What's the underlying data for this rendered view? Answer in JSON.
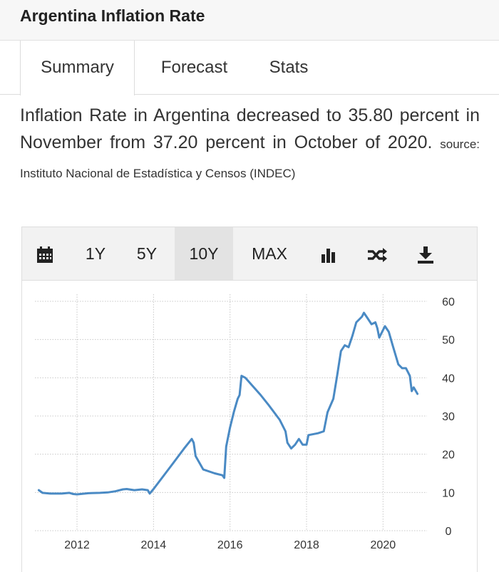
{
  "header": {
    "title": "Argentina Inflation Rate"
  },
  "tabs": [
    {
      "label": "Summary",
      "active": true
    },
    {
      "label": "Forecast",
      "active": false
    },
    {
      "label": "Stats",
      "active": false
    }
  ],
  "description": {
    "text": "Inflation Rate in Argentina decreased to 35.80 percent in November from 37.20 percent in October of 2020.",
    "source": "source: Instituto Nacional de Estadística y Censos (INDEC)"
  },
  "toolbar": {
    "calendar_icon": "calendar-icon",
    "ranges": [
      "1Y",
      "5Y",
      "10Y",
      "MAX"
    ],
    "active_range": "10Y",
    "chart_type_icon": "bar-chart-icon",
    "compare_icon": "shuffle-icon",
    "download_icon": "download-icon"
  },
  "colors": {
    "line": "#4a8ac4",
    "grid": "#c8c8c8",
    "header_bg": "#f7f7f7",
    "toolbar_bg": "#f2f2f2"
  },
  "chart_data": {
    "type": "line",
    "title": "",
    "xlabel": "",
    "ylabel": "",
    "ylim": [
      0,
      60
    ],
    "xlim": [
      2010.9,
      2021.0
    ],
    "x_ticks": [
      "2012",
      "2014",
      "2016",
      "2018",
      "2020"
    ],
    "y_ticks": [
      "0",
      "10",
      "20",
      "30",
      "40",
      "50",
      "60"
    ],
    "grid": true,
    "series": [
      {
        "name": "",
        "points": [
          [
            2011.0,
            10.6
          ],
          [
            2011.1,
            9.9
          ],
          [
            2011.3,
            9.7
          ],
          [
            2011.6,
            9.7
          ],
          [
            2011.8,
            9.9
          ],
          [
            2011.9,
            9.6
          ],
          [
            2012.0,
            9.5
          ],
          [
            2012.3,
            9.8
          ],
          [
            2012.6,
            9.9
          ],
          [
            2012.8,
            10.0
          ],
          [
            2013.0,
            10.3
          ],
          [
            2013.2,
            10.8
          ],
          [
            2013.3,
            10.9
          ],
          [
            2013.5,
            10.6
          ],
          [
            2013.7,
            10.8
          ],
          [
            2013.85,
            10.6
          ],
          [
            2013.9,
            9.7
          ],
          [
            2014.0,
            10.9
          ],
          [
            2014.5,
            17.5
          ],
          [
            2014.8,
            21.5
          ],
          [
            2015.0,
            24.0
          ],
          [
            2015.05,
            23.0
          ],
          [
            2015.1,
            19.5
          ],
          [
            2015.3,
            16.0
          ],
          [
            2015.6,
            15.0
          ],
          [
            2015.8,
            14.5
          ],
          [
            2015.85,
            13.8
          ],
          [
            2015.9,
            22.0
          ],
          [
            2016.0,
            27.0
          ],
          [
            2016.1,
            31.0
          ],
          [
            2016.2,
            34.5
          ],
          [
            2016.25,
            35.5
          ],
          [
            2016.3,
            40.5
          ],
          [
            2016.4,
            40.0
          ],
          [
            2016.8,
            35.5
          ],
          [
            2017.0,
            33.0
          ],
          [
            2017.3,
            29.0
          ],
          [
            2017.45,
            26.0
          ],
          [
            2017.5,
            23.0
          ],
          [
            2017.6,
            21.5
          ],
          [
            2017.7,
            22.5
          ],
          [
            2017.8,
            24.0
          ],
          [
            2017.9,
            22.5
          ],
          [
            2018.0,
            22.5
          ],
          [
            2018.05,
            25.0
          ],
          [
            2018.3,
            25.5
          ],
          [
            2018.45,
            26.0
          ],
          [
            2018.55,
            31.0
          ],
          [
            2018.7,
            34.5
          ],
          [
            2018.8,
            40.5
          ],
          [
            2018.9,
            47.0
          ],
          [
            2019.0,
            48.5
          ],
          [
            2019.1,
            48.0
          ],
          [
            2019.2,
            51.0
          ],
          [
            2019.3,
            54.5
          ],
          [
            2019.45,
            56.0
          ],
          [
            2019.5,
            57.0
          ],
          [
            2019.6,
            55.5
          ],
          [
            2019.7,
            54.0
          ],
          [
            2019.8,
            54.5
          ],
          [
            2019.85,
            53.0
          ],
          [
            2019.9,
            50.5
          ],
          [
            2020.0,
            52.5
          ],
          [
            2020.05,
            53.5
          ],
          [
            2020.15,
            52.0
          ],
          [
            2020.25,
            48.5
          ],
          [
            2020.4,
            43.5
          ],
          [
            2020.5,
            42.5
          ],
          [
            2020.6,
            42.5
          ],
          [
            2020.7,
            40.5
          ],
          [
            2020.75,
            36.5
          ],
          [
            2020.8,
            37.5
          ],
          [
            2020.9,
            35.8
          ]
        ]
      }
    ]
  }
}
